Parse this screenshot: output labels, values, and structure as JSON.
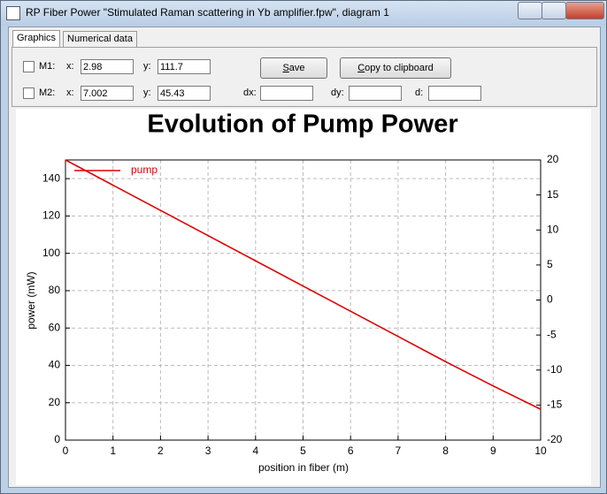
{
  "window": {
    "title": "RP Fiber Power \"Stimulated Raman scattering in Yb amplifier.fpw\", diagram 1",
    "tabs": [
      "Graphics",
      "Numerical data"
    ]
  },
  "markers": [
    {
      "label": "M1:",
      "x_label": "x:",
      "x": "2.98",
      "y_label": "y:",
      "y": "111.7"
    },
    {
      "label": "M2:",
      "x_label": "x:",
      "x": "7.002",
      "y_label": "y:",
      "y": "45.43"
    }
  ],
  "buttons": [
    "Save",
    "Copy to clipboard"
  ],
  "deltas": [
    "dx:",
    "dy:",
    "d:"
  ],
  "chart_data": {
    "type": "line",
    "title": "Evolution of Pump Power",
    "xlabel": "position in fiber (m)",
    "ylabel": "power (mW)",
    "x": [
      0,
      1,
      2,
      3,
      4,
      5,
      6,
      7,
      8,
      9,
      10
    ],
    "series": [
      {
        "name": "pump",
        "color": "#e00000",
        "values": [
          150,
          136.5,
          123,
          109.5,
          96,
          82.5,
          69,
          55.5,
          42,
          29,
          16.5
        ]
      }
    ],
    "xlim": [
      0,
      10
    ],
    "xticks": [
      0,
      1,
      2,
      3,
      4,
      5,
      6,
      7,
      8,
      9,
      10
    ],
    "ylim": [
      0,
      150
    ],
    "yticks": [
      0,
      20,
      40,
      60,
      80,
      100,
      120,
      140
    ],
    "y2lim": [
      -20,
      20
    ],
    "y2ticks": [
      -20,
      -15,
      -10,
      -5,
      0,
      5,
      10,
      15,
      20
    ],
    "grid": true,
    "legend": "upper left"
  }
}
